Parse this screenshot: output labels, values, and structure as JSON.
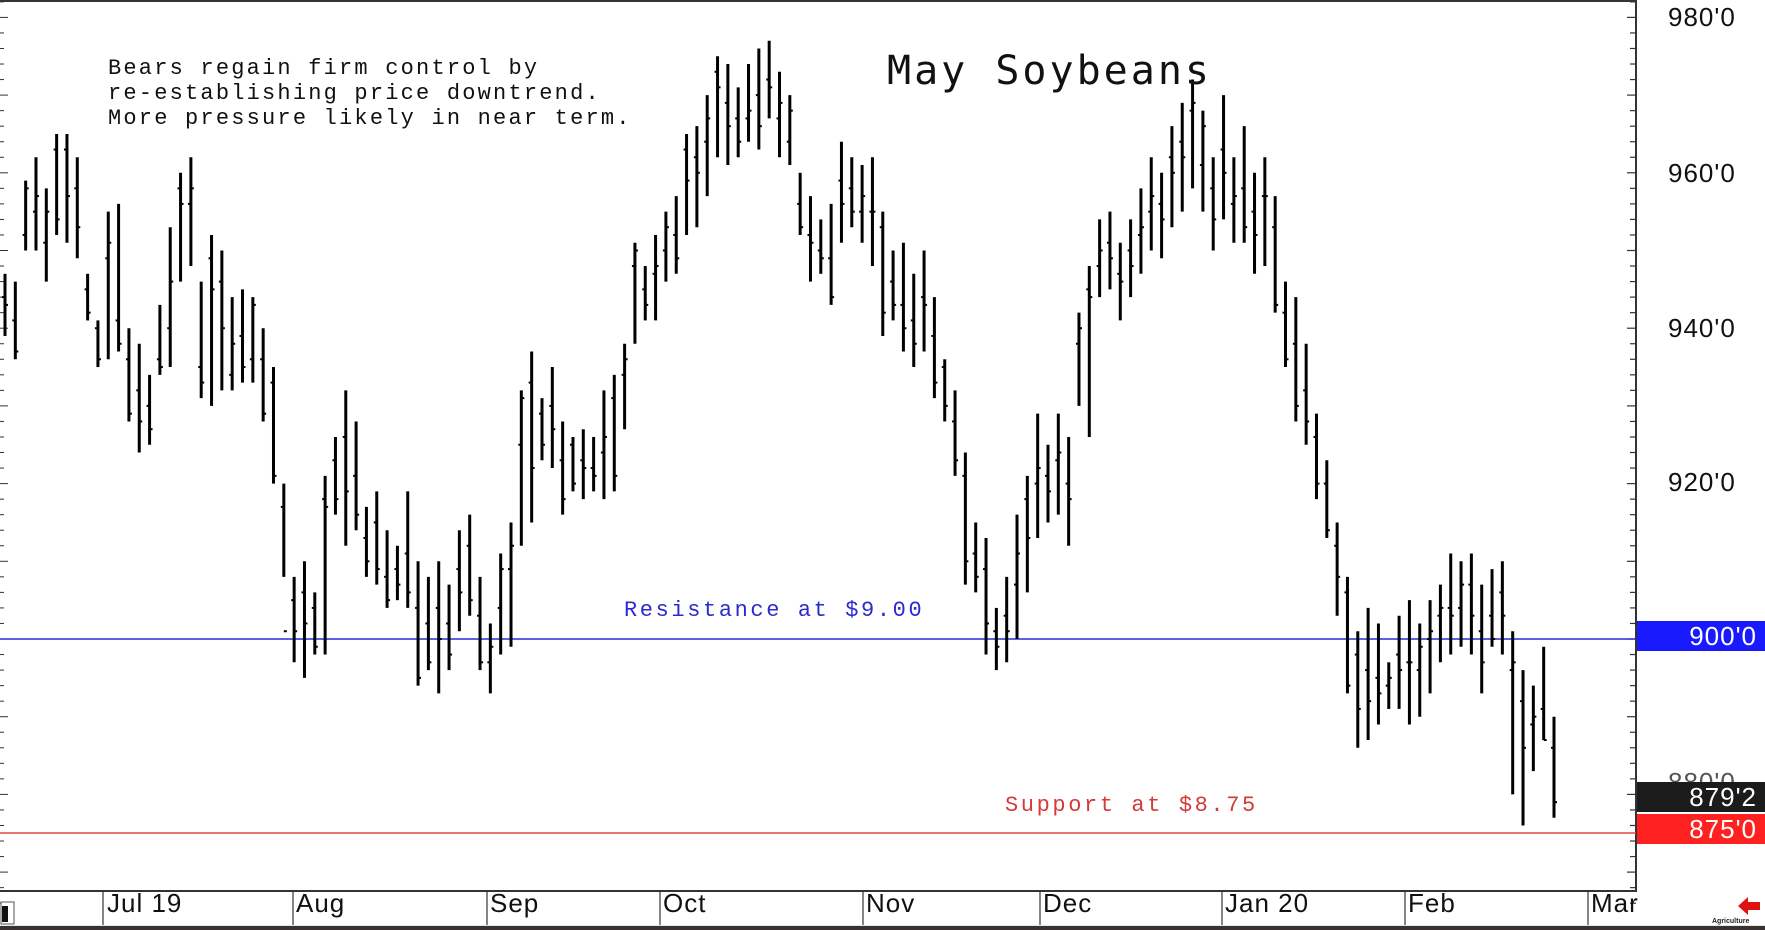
{
  "chart_data": {
    "type": "ohlc_bar",
    "title": "May Soybeans",
    "commentary": [
      "Bears regain firm control by",
      "re-establishing price downtrend.",
      "More pressure likely in near term."
    ],
    "xlabel": "",
    "ylabel": "",
    "ylim": [
      864,
      982
    ],
    "y_ticks": [
      "980'0",
      "960'0",
      "940'0",
      "920'0",
      "900'0"
    ],
    "x_ticks": [
      "Jul 19",
      "Aug",
      "Sep",
      "Oct",
      "Nov",
      "Dec",
      "Jan 20",
      "Feb",
      "Mar"
    ],
    "grid": false,
    "annotations": [
      {
        "text": "Resistance at $9.00",
        "value": 900,
        "color": "#2a2ad0"
      },
      {
        "text": "Support at $8.75",
        "value": 875,
        "color": "#d43a3a"
      }
    ],
    "price_tags": [
      {
        "label": "900'0",
        "color": "#1a1aff"
      },
      {
        "label": "879'2",
        "color": "#1c1c1c",
        "note": "last price"
      },
      {
        "label": "875'0",
        "color": "#ff2020"
      }
    ],
    "series": [
      {
        "name": "May Soybeans (H,L,O,C)",
        "bars": [
          [
            947,
            939,
            944,
            943
          ],
          [
            946,
            936,
            941,
            937
          ],
          [
            959,
            950,
            952,
            958
          ],
          [
            962,
            950,
            955,
            957
          ],
          [
            958,
            946,
            951,
            955
          ],
          [
            965,
            952,
            963,
            954
          ],
          [
            965,
            951,
            963,
            957
          ],
          [
            962,
            949,
            958,
            953
          ],
          [
            947,
            941,
            945,
            942
          ],
          [
            941,
            935,
            940,
            936
          ],
          [
            955,
            936,
            949,
            951
          ],
          [
            956,
            937,
            941,
            938
          ],
          [
            940,
            928,
            936,
            929
          ],
          [
            938,
            924,
            932,
            928
          ],
          [
            934,
            925,
            930,
            927
          ],
          [
            943,
            934,
            936,
            935
          ],
          [
            953,
            935,
            940,
            946
          ],
          [
            960,
            946,
            958,
            956
          ],
          [
            962,
            948,
            956,
            958
          ],
          [
            946,
            931,
            935,
            933
          ],
          [
            952,
            930,
            949,
            945
          ],
          [
            950,
            932,
            946,
            940
          ],
          [
            944,
            932,
            934,
            938
          ],
          [
            945,
            933,
            939,
            935
          ],
          [
            944,
            933,
            936,
            943
          ],
          [
            940,
            928,
            936,
            929
          ],
          [
            935,
            920,
            933,
            921
          ],
          [
            920,
            908,
            917,
            901
          ],
          [
            908,
            897,
            905,
            901
          ],
          [
            910,
            895,
            906,
            902
          ],
          [
            906,
            898,
            904,
            899
          ],
          [
            921,
            898,
            918,
            917
          ],
          [
            926,
            916,
            923,
            918
          ],
          [
            932,
            912,
            926,
            919
          ],
          [
            928,
            914,
            921,
            916
          ],
          [
            917,
            908,
            913,
            910
          ],
          [
            919,
            907,
            915,
            909
          ],
          [
            914,
            904,
            908,
            905
          ],
          [
            912,
            905,
            909,
            907
          ],
          [
            919,
            904,
            911,
            906
          ],
          [
            910,
            894,
            904,
            895
          ],
          [
            908,
            896,
            902,
            897
          ],
          [
            910,
            893,
            904,
            900
          ],
          [
            907,
            896,
            902,
            898
          ],
          [
            914,
            901,
            909,
            906
          ],
          [
            916,
            903,
            912,
            905
          ],
          [
            908,
            896,
            903,
            897
          ],
          [
            902,
            893,
            897,
            899
          ],
          [
            911,
            898,
            904,
            909
          ],
          [
            915,
            899,
            909,
            912
          ],
          [
            932,
            912,
            925,
            931
          ],
          [
            937,
            915,
            933,
            922
          ],
          [
            931,
            923,
            929,
            925
          ],
          [
            935,
            922,
            930,
            927
          ],
          [
            928,
            916,
            923,
            918
          ],
          [
            926,
            919,
            925,
            920
          ],
          [
            927,
            918,
            923,
            922
          ],
          [
            926,
            919,
            922,
            921
          ],
          [
            932,
            918,
            924,
            926
          ],
          [
            934,
            919,
            931,
            921
          ],
          [
            938,
            927,
            934,
            936
          ],
          [
            951,
            938,
            948,
            950
          ],
          [
            948,
            941,
            945,
            943
          ],
          [
            952,
            941,
            947,
            948
          ],
          [
            955,
            946,
            950,
            953
          ],
          [
            957,
            947,
            952,
            949
          ],
          [
            965,
            952,
            963,
            959
          ],
          [
            966,
            953,
            962,
            960
          ],
          [
            970,
            957,
            964,
            967
          ],
          [
            975,
            962,
            973,
            971
          ],
          [
            974,
            961,
            969,
            966
          ],
          [
            971,
            962,
            967,
            964
          ],
          [
            974,
            964,
            967,
            968
          ],
          [
            976,
            963,
            970,
            966
          ],
          [
            977,
            967,
            972,
            971
          ],
          [
            973,
            962,
            967,
            969
          ],
          [
            970,
            961,
            964,
            968
          ],
          [
            960,
            952,
            956,
            953
          ],
          [
            957,
            946,
            952,
            951
          ],
          [
            954,
            947,
            950,
            949
          ],
          [
            956,
            943,
            949,
            944
          ],
          [
            964,
            951,
            959,
            956
          ],
          [
            962,
            953,
            958,
            955
          ],
          [
            961,
            951,
            955,
            957
          ],
          [
            962,
            948,
            955,
            955
          ],
          [
            955,
            939,
            953,
            942
          ],
          [
            950,
            941,
            946,
            943
          ],
          [
            951,
            937,
            943,
            940
          ],
          [
            947,
            935,
            941,
            938
          ],
          [
            950,
            937,
            944,
            943
          ],
          [
            944,
            931,
            939,
            933
          ],
          [
            936,
            928,
            935,
            930
          ],
          [
            932,
            921,
            928,
            923
          ],
          [
            924,
            907,
            921,
            910
          ],
          [
            915,
            906,
            911,
            908
          ],
          [
            913,
            898,
            909,
            902
          ],
          [
            904,
            896,
            901,
            899
          ],
          [
            908,
            897,
            903,
            901
          ],
          [
            916,
            900,
            907,
            911
          ],
          [
            921,
            906,
            918,
            913
          ],
          [
            929,
            913,
            920,
            922
          ],
          [
            925,
            915,
            921,
            919
          ],
          [
            929,
            916,
            923,
            924
          ],
          [
            926,
            912,
            920,
            918
          ],
          [
            942,
            930,
            938,
            940
          ],
          [
            948,
            926,
            945,
            944
          ],
          [
            954,
            944,
            948,
            950
          ],
          [
            955,
            945,
            951,
            949
          ],
          [
            951,
            941,
            947,
            946
          ],
          [
            954,
            944,
            950,
            948
          ],
          [
            958,
            947,
            952,
            953
          ],
          [
            962,
            950,
            955,
            957
          ],
          [
            960,
            949,
            956,
            954
          ],
          [
            966,
            953,
            962,
            960
          ],
          [
            969,
            955,
            964,
            962
          ],
          [
            972,
            958,
            968,
            969
          ],
          [
            968,
            955,
            961,
            966
          ],
          [
            962,
            950,
            958,
            954
          ],
          [
            970,
            954,
            963,
            960
          ],
          [
            962,
            951,
            956,
            957
          ],
          [
            966,
            951,
            958,
            953
          ],
          [
            960,
            947,
            955,
            952
          ],
          [
            962,
            948,
            957,
            957
          ],
          [
            957,
            942,
            953,
            943
          ],
          [
            946,
            935,
            942,
            936
          ],
          [
            944,
            928,
            938,
            930
          ],
          [
            938,
            925,
            932,
            928
          ],
          [
            929,
            918,
            926,
            920
          ],
          [
            923,
            913,
            920,
            914
          ],
          [
            915,
            903,
            912,
            908
          ],
          [
            908,
            893,
            906,
            894
          ],
          [
            901,
            886,
            898,
            891
          ],
          [
            904,
            887,
            896,
            892
          ],
          [
            902,
            889,
            895,
            893
          ],
          [
            897,
            891,
            894,
            895
          ],
          [
            903,
            891,
            898,
            896
          ],
          [
            905,
            889,
            897,
            897
          ],
          [
            902,
            890,
            896,
            899
          ],
          [
            905,
            893,
            900,
            901
          ],
          [
            907,
            897,
            903,
            904
          ],
          [
            911,
            898,
            904,
            903
          ],
          [
            910,
            899,
            904,
            907
          ],
          [
            911,
            898,
            907,
            903
          ],
          [
            907,
            893,
            901,
            897
          ],
          [
            909,
            899,
            903,
            900
          ],
          [
            910,
            898,
            906,
            903
          ],
          [
            901,
            880,
            896,
            897
          ],
          [
            896,
            876,
            892,
            886
          ],
          [
            894,
            883,
            889,
            890
          ],
          [
            899,
            887,
            891,
            887
          ],
          [
            890,
            877,
            886,
            879
          ]
        ]
      }
    ]
  }
}
